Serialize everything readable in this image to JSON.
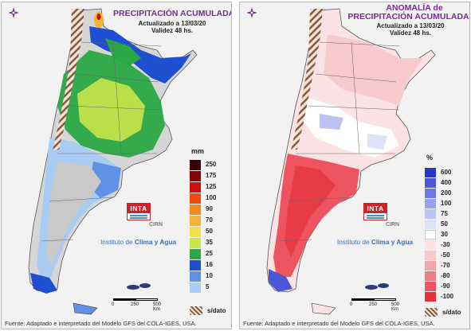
{
  "left_panel": {
    "title": "PRECIPITACIÓN ACUMULADA",
    "updated": "Actualizado a 13/03/20",
    "validity": "Validez 48 hs.",
    "unit": "mm",
    "legend": [
      {
        "label": "250",
        "color": "#3b0000"
      },
      {
        "label": "175",
        "color": "#8b0000"
      },
      {
        "label": "125",
        "color": "#cc1010"
      },
      {
        "label": "100",
        "color": "#f04a10"
      },
      {
        "label": "90",
        "color": "#f48a1c"
      },
      {
        "label": "70",
        "color": "#f5b33a"
      },
      {
        "label": "50",
        "color": "#f4e04a"
      },
      {
        "label": "35",
        "color": "#c8e64a"
      },
      {
        "label": "25",
        "color": "#2aa845"
      },
      {
        "label": "16",
        "color": "#1f4fd1"
      },
      {
        "label": "10",
        "color": "#5f92e6"
      },
      {
        "label": "5",
        "color": "#a9ccf2"
      }
    ],
    "nodata": "s/dato",
    "scale": {
      "ticks": [
        "0",
        "250",
        "500 Km"
      ]
    },
    "logo_text": "INTA",
    "logo_sub": "CIRN",
    "institute_prefix": "Instituto de ",
    "institute_bold": "Clima y Agua",
    "source": "Fuente: Adaptado e interpretado del Modelo GFS del COLA-IGES, USA."
  },
  "right_panel": {
    "title_line1": "ANOMALÍA de",
    "title_line2": "PRECIPITACIÓN ACUMULADA",
    "updated": "Actualizado a 13/03/20",
    "validity": "Validez 48 hs.",
    "unit": "%",
    "legend": [
      {
        "label": "600",
        "color": "#2b35c4"
      },
      {
        "label": "400",
        "color": "#4a57d6"
      },
      {
        "label": "200",
        "color": "#6d78e0"
      },
      {
        "label": "100",
        "color": "#9aa2ea"
      },
      {
        "label": "75",
        "color": "#bcc2f2"
      },
      {
        "label": "50",
        "color": "#dfe2f9"
      },
      {
        "label": "30",
        "color": "#ffffff"
      },
      {
        "label": "-30",
        "color": "#fbe3e5"
      },
      {
        "label": "-50",
        "color": "#f8c9cd"
      },
      {
        "label": "-70",
        "color": "#f4a5ab"
      },
      {
        "label": "-80",
        "color": "#f07c84"
      },
      {
        "label": "-90",
        "color": "#ec555f"
      },
      {
        "label": "-100",
        "color": "#e6323d"
      }
    ],
    "nodata": "s/dato",
    "scale": {
      "ticks": [
        "0",
        "250",
        "500 Km"
      ]
    },
    "logo_text": "INTA",
    "logo_sub": "CIRN",
    "institute_prefix": "Instituto de ",
    "institute_bold": "Clima y Agua",
    "source": "Fuente: Adaptado e interpretado del Modelo GFS del COLA-IGES, USA."
  }
}
